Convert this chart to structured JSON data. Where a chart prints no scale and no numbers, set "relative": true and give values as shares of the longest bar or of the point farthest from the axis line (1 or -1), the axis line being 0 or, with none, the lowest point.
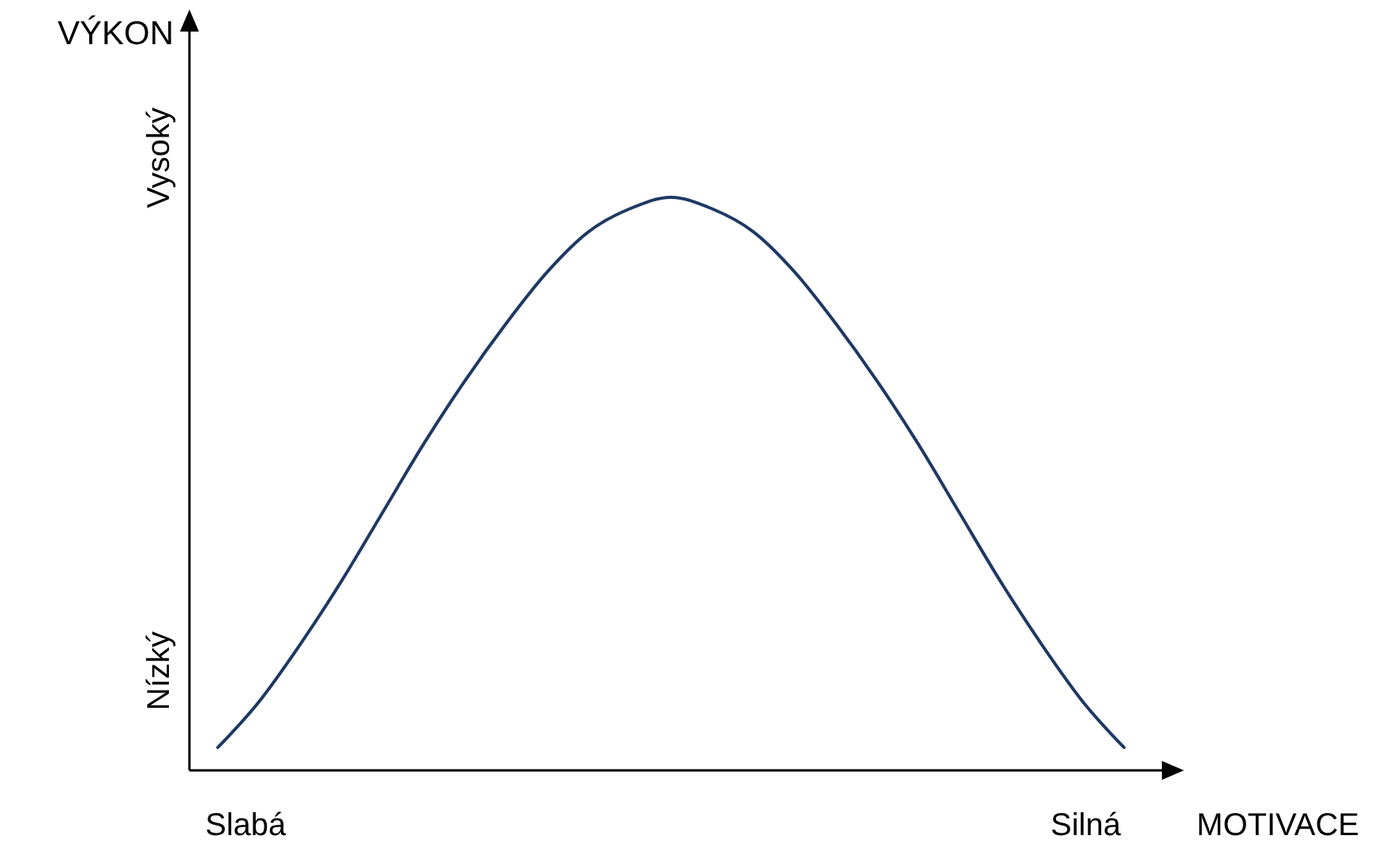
{
  "chart_data": {
    "type": "line",
    "relative": true,
    "xlabel": "MOTIVACE",
    "ylabel": "VÝKON",
    "annotations": [
      "Slabá",
      "Silná",
      "Nízký",
      "Vysoký"
    ],
    "categories": [
      null,
      null,
      null,
      null,
      null,
      null,
      null,
      null,
      null,
      null,
      null,
      null,
      null,
      null,
      null,
      null,
      null,
      null,
      null,
      null,
      null,
      null,
      null
    ],
    "series": [
      {
        "color": "#1f3864",
        "values": [
          0.04,
          0.12,
          0.22,
          0.33,
          0.45,
          0.57,
          0.68,
          0.78,
          0.87,
          0.94,
          0.98,
          1.0,
          0.98,
          0.94,
          0.87,
          0.78,
          0.68,
          0.57,
          0.45,
          0.33,
          0.22,
          0.12,
          0.04
        ]
      }
    ]
  }
}
